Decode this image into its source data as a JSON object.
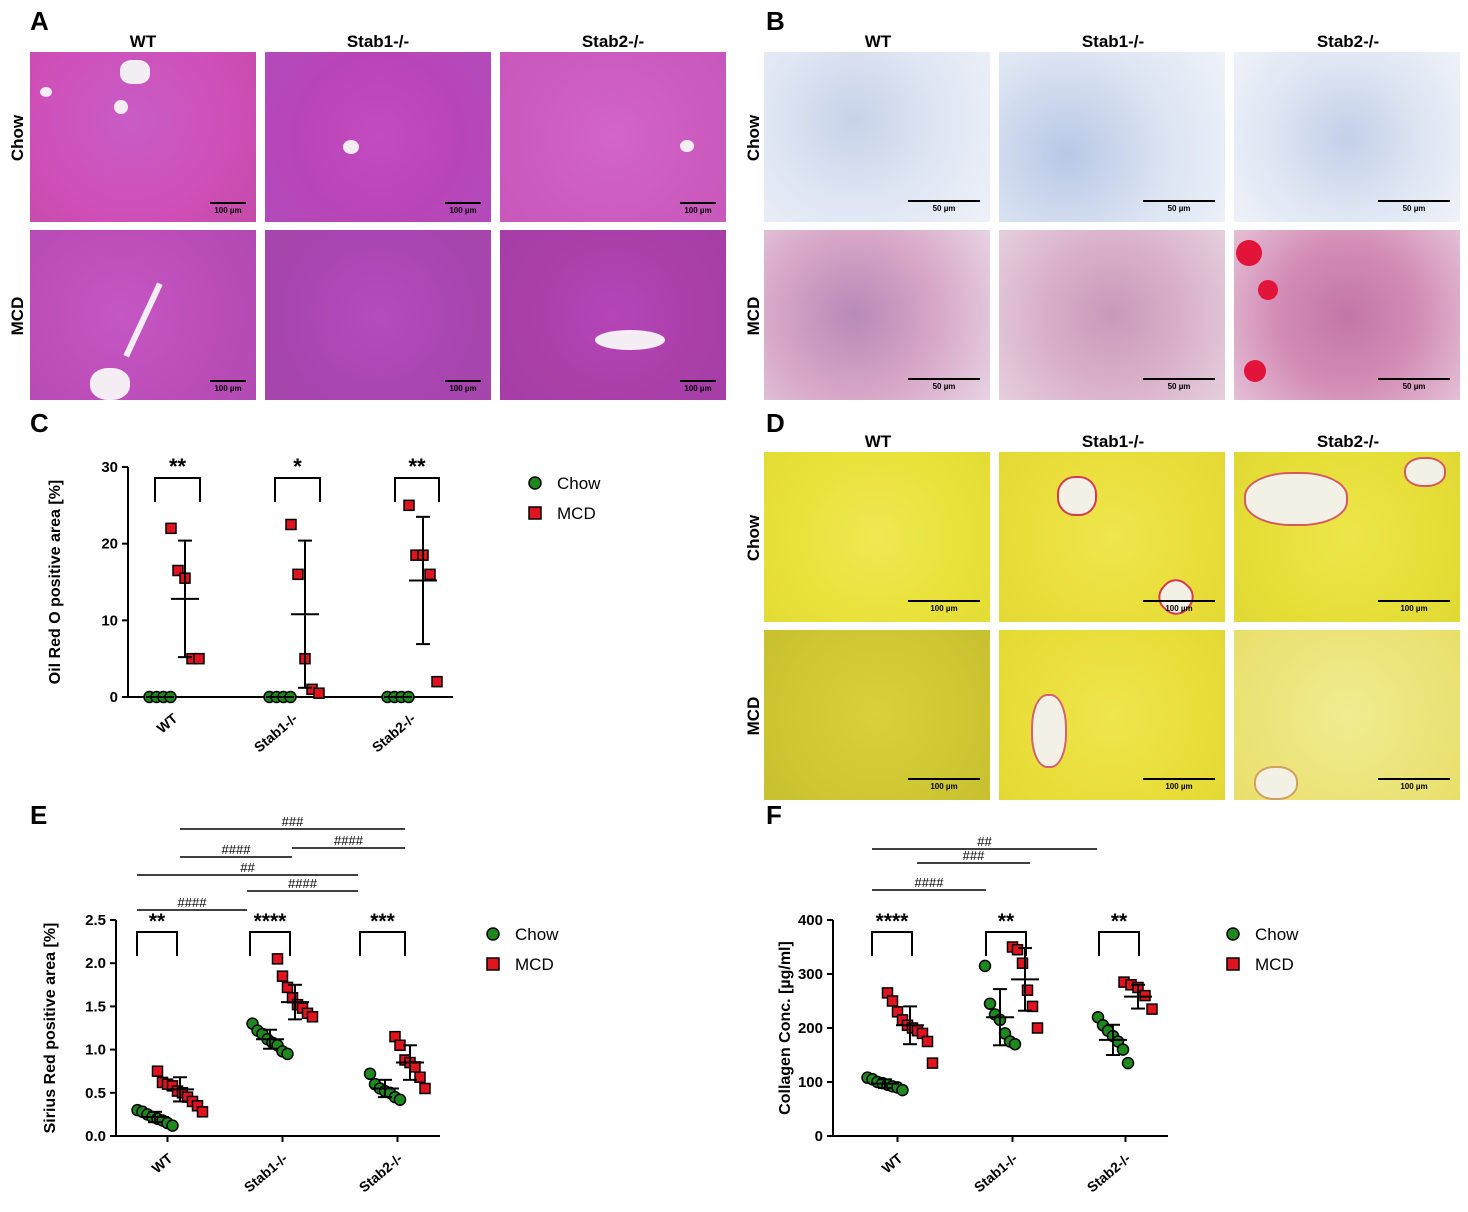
{
  "panels": {
    "A": {
      "letter": "A",
      "columns": [
        "WT",
        "Stab1-/-",
        "Stab2-/-"
      ],
      "rows": [
        "Chow",
        "MCD"
      ],
      "scalebar": "100 µm"
    },
    "B": {
      "letter": "B",
      "columns": [
        "WT",
        "Stab1-/-",
        "Stab2-/-"
      ],
      "rows": [
        "Chow",
        "MCD"
      ],
      "scalebar": "50 µm"
    },
    "C": {
      "letter": "C"
    },
    "D": {
      "letter": "D",
      "columns": [
        "WT",
        "Stab1-/-",
        "Stab2-/-"
      ],
      "rows": [
        "Chow",
        "MCD"
      ],
      "scalebar": "100 µm"
    },
    "E": {
      "letter": "E"
    },
    "F": {
      "letter": "F"
    }
  },
  "colors": {
    "chow": "#1e8a1e",
    "mcd": "#e0141e",
    "he_bg": "#d24fbe",
    "oro_bg": "#dfe6f3",
    "sirius_bg": "#e9e23a"
  },
  "chart_data": [
    {
      "id": "C",
      "type": "scatter",
      "ylabel": "Oil Red O positive area [%]",
      "ylim": [
        0,
        30
      ],
      "yticks": [
        "0",
        "10",
        "20",
        "30"
      ],
      "categories": [
        "WT",
        "Stab1-/-",
        "Stab2-/-"
      ],
      "legend": [
        "Chow",
        "MCD"
      ],
      "series": [
        {
          "name": "Chow",
          "points": [
            [
              0,
              0,
              0,
              0
            ],
            [
              0,
              0,
              0,
              0
            ],
            [
              0,
              0,
              0,
              0
            ]
          ],
          "mean": [
            0,
            0,
            0
          ],
          "sd": [
            0,
            0,
            0
          ]
        },
        {
          "name": "MCD",
          "points": [
            [
              22,
              16.5,
              15.5,
              5,
              5
            ],
            [
              22.5,
              16,
              5,
              1,
              0.5
            ],
            [
              25,
              18.5,
              18.5,
              16,
              2
            ]
          ],
          "mean": [
            12.8,
            10.8,
            15.2
          ],
          "sd": [
            7.6,
            9.6,
            8.3
          ]
        }
      ],
      "significance": [
        "**",
        "*",
        "**"
      ]
    },
    {
      "id": "E",
      "type": "scatter",
      "ylabel": "Sirius Red positive area [%]",
      "ylim": [
        0,
        2.5
      ],
      "yticks": [
        "0.0",
        "0.5",
        "1.0",
        "1.5",
        "2.0",
        "2.5"
      ],
      "categories": [
        "WT",
        "Stab1-/-",
        "Stab2-/-"
      ],
      "legend": [
        "Chow",
        "MCD"
      ],
      "series": [
        {
          "name": "Chow",
          "points": [
            [
              0.3,
              0.28,
              0.25,
              0.22,
              0.2,
              0.18,
              0.15,
              0.12
            ],
            [
              1.3,
              1.22,
              1.18,
              1.12,
              1.08,
              1.05,
              0.98,
              0.95
            ],
            [
              0.72,
              0.6,
              0.55,
              0.52,
              0.5,
              0.45,
              0.42
            ]
          ],
          "mean": [
            0.22,
            1.12,
            0.55
          ],
          "sd": [
            0.06,
            0.11,
            0.1
          ]
        },
        {
          "name": "MCD",
          "points": [
            [
              0.75,
              0.62,
              0.6,
              0.58,
              0.52,
              0.5,
              0.45,
              0.4,
              0.35,
              0.28
            ],
            [
              2.05,
              1.85,
              1.72,
              1.6,
              1.52,
              1.48,
              1.42,
              1.38
            ],
            [
              1.15,
              1.05,
              0.88,
              0.85,
              0.8,
              0.68,
              0.55
            ]
          ],
          "mean": [
            0.54,
            1.55,
            0.85
          ],
          "sd": [
            0.14,
            0.2,
            0.2
          ]
        }
      ],
      "significance": [
        "**",
        "****",
        "***"
      ],
      "comparisons": [
        "###",
        "####",
        "####",
        "##",
        "####",
        "####"
      ]
    },
    {
      "id": "F",
      "type": "scatter",
      "ylabel": "Collagen Conc. [µg/ml]",
      "ylim": [
        0,
        400
      ],
      "yticks": [
        "0",
        "100",
        "200",
        "300",
        "400"
      ],
      "categories": [
        "WT",
        "Stab1-/-",
        "Stab2-/-"
      ],
      "legend": [
        "Chow",
        "MCD"
      ],
      "series": [
        {
          "name": "Chow",
          "points": [
            [
              108,
              105,
              100,
              98,
              95,
              92,
              90,
              85
            ],
            [
              315,
              245,
              225,
              215,
              190,
              175,
              170
            ],
            [
              220,
              205,
              195,
              185,
              175,
              160,
              135
            ]
          ],
          "mean": [
            97,
            220,
            178
          ],
          "sd": [
            8,
            52,
            28
          ]
        },
        {
          "name": "MCD",
          "points": [
            [
              265,
              250,
              230,
              215,
              205,
              200,
              195,
              190,
              175,
              135
            ],
            [
              350,
              345,
              320,
              270,
              240,
              200
            ],
            [
              285,
              280,
              275,
              260,
              235
            ]
          ],
          "mean": [
            205,
            290,
            258
          ],
          "sd": [
            35,
            58,
            22
          ]
        }
      ],
      "significance": [
        "****",
        "**",
        "**"
      ],
      "comparisons": [
        "##",
        "###",
        "####"
      ]
    }
  ]
}
